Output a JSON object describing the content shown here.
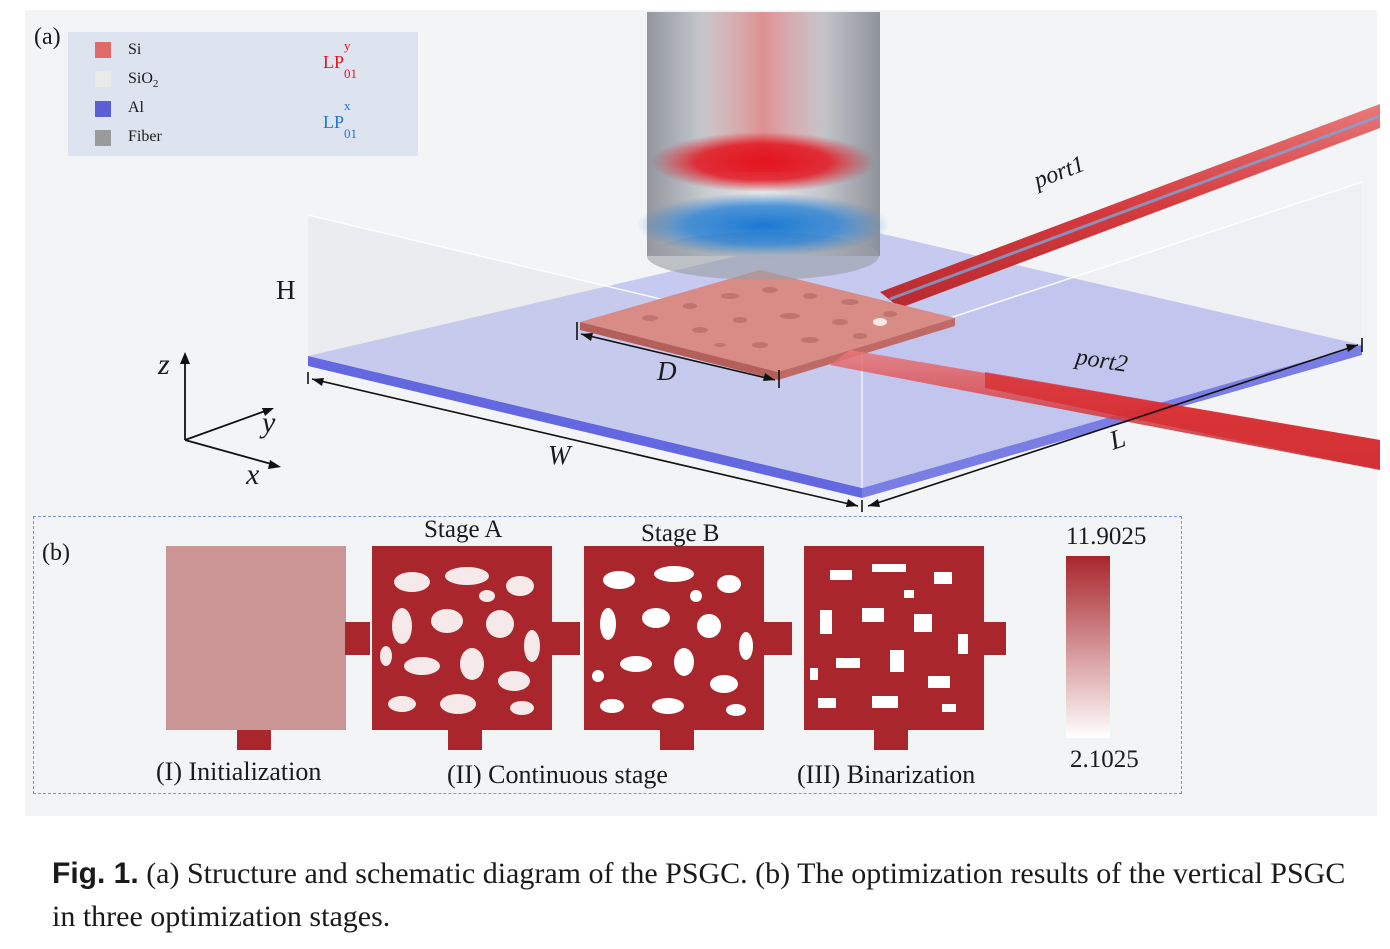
{
  "panel_a": {
    "label": "(a)",
    "legend": {
      "materials": [
        {
          "name": "Si",
          "color": "#e06a6a"
        },
        {
          "name_main": "SiO",
          "name_sub": "2",
          "color": "#e8ebe8"
        },
        {
          "name": "Al",
          "color": "#5b5fd6"
        },
        {
          "name": "Fiber",
          "color": "#9a9a9a"
        }
      ],
      "modes": [
        {
          "main": "LP",
          "sup": "y",
          "sub": "01",
          "color": "#e3141e"
        },
        {
          "main": "LP",
          "sup": "x",
          "sub": "01",
          "color": "#1a78d0"
        }
      ]
    },
    "dimensions": {
      "H": "H",
      "D": "D",
      "W": "W",
      "L": "L"
    },
    "axes": {
      "z": "z",
      "y": "y",
      "x": "x"
    },
    "ports": {
      "port1": "port1",
      "port2": "port2"
    }
  },
  "panel_b": {
    "label": "(b)",
    "stage_titles": [
      "Stage A",
      "Stage B"
    ],
    "captions": [
      "(I) Initialization",
      "(II) Continuous stage",
      "(III) Binarization"
    ],
    "colorbar": {
      "max": "11.9025",
      "min": "2.1025",
      "color_high": "#a8262c",
      "color_low": "#ffffff"
    },
    "colors": {
      "init": "#cc9595",
      "design": "#a8262c"
    }
  },
  "caption": {
    "fig_label": "Fig. 1.",
    "text": " (a) Structure and schematic diagram of the PSGC. (b) The optimization results of the vertical PSGC in three optimization stages."
  }
}
